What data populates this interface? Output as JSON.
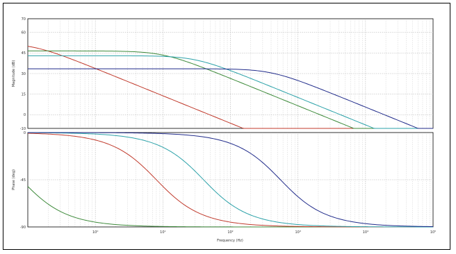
{
  "figure": {
    "xlabel": "Frequency (Hz)",
    "colors": {
      "blue": "#1f2a8a",
      "green": "#3d8a3a",
      "red": "#c0392b",
      "cyan": "#2aa1a8",
      "grid": "#9a9a9a",
      "frame": "#000000"
    }
  },
  "chart_data": [
    {
      "type": "line",
      "panel": "magnitude",
      "ylabel": "Magnitude (dB)",
      "xscale": "log",
      "xlim": [
        0.1,
        100000
      ],
      "ylim": [
        -10,
        70
      ],
      "yticks": [
        -10,
        0,
        15,
        30,
        45,
        60,
        70
      ],
      "yticklabels": [
        "-10",
        "0",
        "15",
        "30",
        "45",
        "60",
        "70"
      ],
      "grid": true,
      "series": [
        {
          "color": "#c0392b",
          "pole_hz": 0.12,
          "dc_gain_db": 52.2
        },
        {
          "color": "#3d8a3a",
          "pole_hz": 10,
          "dc_gain_db": 46.5
        },
        {
          "color": "#2aa1a8",
          "pole_hz": 30,
          "dc_gain_db": 43
        },
        {
          "color": "#1f2a8a",
          "pole_hz": 400,
          "dc_gain_db": 33.5
        }
      ]
    },
    {
      "type": "line",
      "panel": "phase",
      "ylabel": "Phase (deg)",
      "xscale": "log",
      "xlim": [
        0.1,
        100000
      ],
      "ylim": [
        -90,
        0
      ],
      "yticks": [
        -90,
        -45,
        0
      ],
      "yticklabels": [
        "-90",
        "-45",
        "0"
      ],
      "grid": true,
      "xticks": [
        1,
        10,
        100,
        1000,
        10000,
        100000
      ],
      "xticklabels": [
        "10⁰",
        "10¹",
        "10²",
        "10³",
        "10⁴",
        "10⁵"
      ],
      "series": [
        {
          "color": "#3d8a3a",
          "pole_hz": 0.08
        },
        {
          "color": "#c0392b",
          "pole_hz": 8
        },
        {
          "color": "#2aa1a8",
          "pole_hz": 40
        },
        {
          "color": "#1f2a8a",
          "pole_hz": 550
        }
      ]
    }
  ]
}
